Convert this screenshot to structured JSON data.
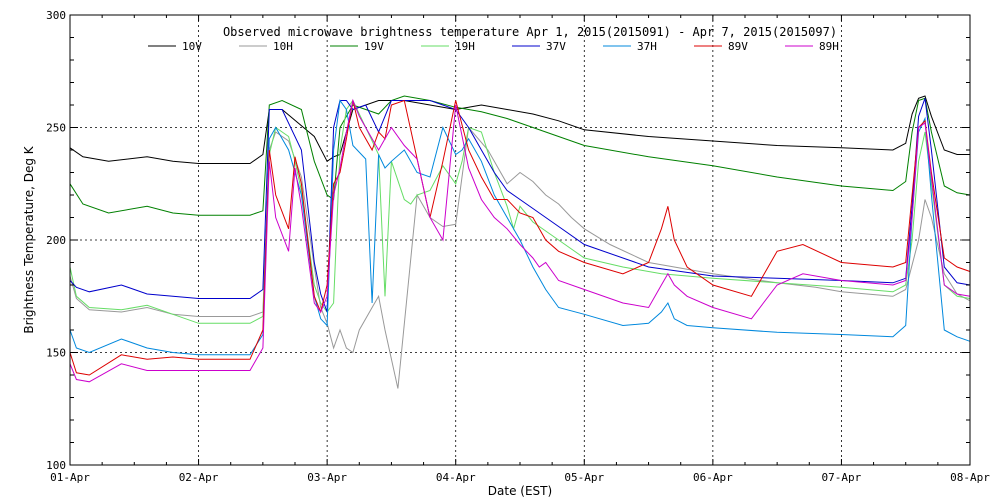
{
  "chart_data": {
    "type": "line",
    "title": "Observed microwave brightness temperature Apr  1, 2015(2015091) - Apr  7, 2015(2015097)",
    "xlabel": "Date (EST)",
    "ylabel": "Brightness Temperature, Deg K",
    "xlim": [
      0,
      7
    ],
    "ylim": [
      100,
      300
    ],
    "grid": true,
    "legend_position": "top",
    "x_ticks": [
      {
        "value": 0,
        "label": "01-Apr"
      },
      {
        "value": 1,
        "label": "02-Apr"
      },
      {
        "value": 2,
        "label": "03-Apr"
      },
      {
        "value": 3,
        "label": "04-Apr"
      },
      {
        "value": 4,
        "label": "05-Apr"
      },
      {
        "value": 5,
        "label": "06-Apr"
      },
      {
        "value": 6,
        "label": "07-Apr"
      },
      {
        "value": 7,
        "label": "08-Apr"
      }
    ],
    "y_ticks": [
      {
        "value": 100,
        "label": "100"
      },
      {
        "value": 150,
        "label": "150"
      },
      {
        "value": 200,
        "label": "200"
      },
      {
        "value": 250,
        "label": "250"
      },
      {
        "value": 300,
        "label": "300"
      }
    ],
    "series": [
      {
        "name": "10V",
        "color": "#000000",
        "x": [
          0,
          0.1,
          0.3,
          0.6,
          0.8,
          1.0,
          1.4,
          1.5,
          1.55,
          1.65,
          1.9,
          2.0,
          2.05,
          2.1,
          2.2,
          2.4,
          2.6,
          2.8,
          3.0,
          3.2,
          3.4,
          3.6,
          3.8,
          4.0,
          4.5,
          5.0,
          5.5,
          6.0,
          6.4,
          6.5,
          6.55,
          6.6,
          6.65,
          6.7,
          6.8,
          6.9,
          7.0
        ],
        "y": [
          241,
          237,
          235,
          237,
          235,
          234,
          234,
          238,
          258,
          258,
          246,
          235,
          237,
          238,
          258,
          262,
          262,
          260,
          258,
          260,
          258,
          256,
          253,
          249,
          246,
          244,
          242,
          241,
          240,
          243,
          256,
          263,
          264,
          255,
          240,
          238,
          238
        ]
      },
      {
        "name": "10H",
        "color": "#999999",
        "x": [
          0,
          0.05,
          0.15,
          0.4,
          0.6,
          0.8,
          1.0,
          1.4,
          1.5,
          1.55,
          1.6,
          1.7,
          1.8,
          1.9,
          1.95,
          2.0,
          2.05,
          2.1,
          2.15,
          2.2,
          2.25,
          2.35,
          2.4,
          2.45,
          2.55,
          2.7,
          2.8,
          2.9,
          3.0,
          3.1,
          3.25,
          3.4,
          3.5,
          3.6,
          3.7,
          3.8,
          3.9,
          4.0,
          4.2,
          4.5,
          5.0,
          5.5,
          5.8,
          6.0,
          6.4,
          6.5,
          6.6,
          6.65,
          6.7,
          6.8,
          6.9,
          7.0
        ],
        "y": [
          184,
          174,
          169,
          168,
          170,
          167,
          166,
          166,
          168,
          240,
          248,
          244,
          228,
          188,
          170,
          163,
          152,
          160,
          152,
          150,
          160,
          170,
          175,
          160,
          134,
          220,
          210,
          206,
          207,
          250,
          240,
          225,
          230,
          226,
          220,
          216,
          210,
          205,
          198,
          190,
          185,
          181,
          179,
          177,
          175,
          178,
          200,
          218,
          210,
          185,
          176,
          173
        ]
      },
      {
        "name": "19V",
        "color": "#008000",
        "x": [
          0,
          0.1,
          0.3,
          0.6,
          0.8,
          1.0,
          1.4,
          1.5,
          1.55,
          1.65,
          1.8,
          1.9,
          2.0,
          2.05,
          2.1,
          2.2,
          2.3,
          2.4,
          2.5,
          2.6,
          2.8,
          3.0,
          3.2,
          3.4,
          3.6,
          3.8,
          4.0,
          4.5,
          5.0,
          5.5,
          6.0,
          6.4,
          6.5,
          6.55,
          6.6,
          6.65,
          6.7,
          6.8,
          6.9,
          7.0
        ],
        "y": [
          225,
          216,
          212,
          215,
          212,
          211,
          211,
          213,
          260,
          262,
          258,
          235,
          220,
          218,
          250,
          260,
          258,
          256,
          262,
          264,
          262,
          259,
          257,
          254,
          250,
          246,
          242,
          237,
          233,
          228,
          224,
          222,
          226,
          248,
          262,
          263,
          248,
          224,
          221,
          220
        ]
      },
      {
        "name": "19H",
        "color": "#66dd66",
        "x": [
          0,
          0.05,
          0.15,
          0.4,
          0.6,
          0.8,
          1.0,
          1.4,
          1.5,
          1.55,
          1.6,
          1.7,
          1.75,
          1.8,
          1.9,
          1.95,
          2.0,
          2.05,
          2.1,
          2.15,
          2.2,
          2.3,
          2.4,
          2.45,
          2.5,
          2.6,
          2.65,
          2.7,
          2.8,
          2.9,
          3.0,
          3.05,
          3.1,
          3.2,
          3.3,
          3.4,
          3.45,
          3.5,
          3.6,
          3.7,
          3.8,
          3.9,
          4.0,
          4.3,
          4.6,
          5.0,
          5.5,
          6.0,
          6.4,
          6.5,
          6.55,
          6.6,
          6.65,
          6.7,
          6.8,
          6.9,
          7.0
        ],
        "y": [
          188,
          175,
          170,
          169,
          171,
          167,
          163,
          163,
          166,
          238,
          250,
          246,
          235,
          222,
          180,
          172,
          168,
          172,
          240,
          258,
          262,
          250,
          238,
          175,
          235,
          218,
          216,
          220,
          222,
          233,
          225,
          235,
          250,
          248,
          230,
          215,
          205,
          215,
          208,
          204,
          200,
          196,
          192,
          188,
          185,
          183,
          181,
          179,
          177,
          180,
          200,
          235,
          248,
          225,
          180,
          175,
          174
        ]
      },
      {
        "name": "37V",
        "color": "#0000cc",
        "x": [
          0,
          0.05,
          0.15,
          0.4,
          0.6,
          0.8,
          1.0,
          1.4,
          1.5,
          1.55,
          1.65,
          1.8,
          1.9,
          1.95,
          2.0,
          2.05,
          2.1,
          2.15,
          2.2,
          2.3,
          2.4,
          2.5,
          2.6,
          2.8,
          3.0,
          3.1,
          3.2,
          3.3,
          3.4,
          3.5,
          3.6,
          3.8,
          4.0,
          4.5,
          5.0,
          5.5,
          6.0,
          6.4,
          6.5,
          6.55,
          6.6,
          6.65,
          6.7,
          6.8,
          6.9,
          7.0
        ],
        "y": [
          182,
          179,
          177,
          180,
          176,
          175,
          174,
          174,
          178,
          258,
          258,
          240,
          190,
          176,
          168,
          250,
          262,
          262,
          258,
          260,
          248,
          262,
          262,
          262,
          258,
          250,
          240,
          230,
          222,
          218,
          214,
          206,
          198,
          188,
          184,
          183,
          182,
          181,
          183,
          215,
          255,
          263,
          240,
          188,
          181,
          180
        ]
      },
      {
        "name": "37H",
        "color": "#0088dd",
        "x": [
          0,
          0.05,
          0.15,
          0.4,
          0.6,
          0.8,
          1.0,
          1.4,
          1.5,
          1.55,
          1.6,
          1.7,
          1.8,
          1.9,
          1.95,
          2.0,
          2.05,
          2.1,
          2.15,
          2.2,
          2.3,
          2.35,
          2.4,
          2.45,
          2.5,
          2.6,
          2.7,
          2.8,
          2.9,
          3.0,
          3.05,
          3.1,
          3.2,
          3.3,
          3.4,
          3.5,
          3.6,
          3.7,
          3.8,
          4.0,
          4.3,
          4.5,
          4.6,
          4.65,
          4.7,
          4.8,
          5.0,
          5.5,
          6.0,
          6.4,
          6.5,
          6.55,
          6.6,
          6.65,
          6.7,
          6.8,
          6.9,
          7.0
        ],
        "y": [
          160,
          152,
          150,
          156,
          152,
          150,
          149,
          149,
          158,
          245,
          250,
          240,
          220,
          175,
          165,
          162,
          240,
          262,
          258,
          242,
          236,
          172,
          238,
          232,
          235,
          240,
          230,
          228,
          250,
          238,
          240,
          245,
          235,
          220,
          210,
          200,
          188,
          178,
          170,
          167,
          162,
          163,
          168,
          172,
          165,
          162,
          161,
          159,
          158,
          157,
          162,
          210,
          248,
          254,
          220,
          160,
          157,
          155
        ]
      },
      {
        "name": "89V",
        "color": "#dd0000",
        "x": [
          0,
          0.05,
          0.15,
          0.4,
          0.6,
          0.8,
          1.0,
          1.4,
          1.5,
          1.55,
          1.6,
          1.7,
          1.75,
          1.8,
          1.9,
          1.95,
          2.0,
          2.05,
          2.1,
          2.15,
          2.2,
          2.25,
          2.35,
          2.4,
          2.45,
          2.5,
          2.6,
          2.8,
          2.9,
          3.0,
          3.1,
          3.2,
          3.3,
          3.4,
          3.5,
          3.6,
          3.65,
          3.7,
          3.8,
          4.0,
          4.3,
          4.5,
          4.6,
          4.65,
          4.7,
          4.8,
          5.0,
          5.3,
          5.5,
          5.7,
          6.0,
          6.4,
          6.5,
          6.55,
          6.6,
          6.65,
          6.7,
          6.8,
          6.9,
          7.0
        ],
        "y": [
          150,
          141,
          140,
          149,
          147,
          148,
          147,
          147,
          160,
          240,
          220,
          205,
          237,
          225,
          175,
          168,
          180,
          225,
          230,
          245,
          262,
          250,
          240,
          248,
          245,
          260,
          262,
          210,
          235,
          262,
          240,
          228,
          218,
          218,
          212,
          210,
          205,
          200,
          195,
          190,
          185,
          190,
          205,
          215,
          200,
          188,
          180,
          175,
          195,
          198,
          190,
          188,
          190,
          220,
          250,
          253,
          230,
          192,
          188,
          186
        ]
      },
      {
        "name": "89H",
        "color": "#cc00cc",
        "x": [
          0,
          0.05,
          0.15,
          0.4,
          0.6,
          0.8,
          1.0,
          1.4,
          1.5,
          1.55,
          1.6,
          1.7,
          1.75,
          1.8,
          1.9,
          1.95,
          2.0,
          2.05,
          2.1,
          2.15,
          2.2,
          2.25,
          2.35,
          2.4,
          2.5,
          2.6,
          2.7,
          2.8,
          2.9,
          3.0,
          3.1,
          3.2,
          3.3,
          3.4,
          3.5,
          3.6,
          3.65,
          3.7,
          3.8,
          4.0,
          4.3,
          4.5,
          4.6,
          4.65,
          4.7,
          4.8,
          5.0,
          5.3,
          5.5,
          5.7,
          6.0,
          6.4,
          6.5,
          6.55,
          6.6,
          6.65,
          6.7,
          6.8,
          6.9,
          7.0
        ],
        "y": [
          145,
          138,
          137,
          145,
          142,
          142,
          142,
          142,
          152,
          235,
          210,
          195,
          232,
          215,
          172,
          168,
          175,
          220,
          232,
          248,
          262,
          255,
          245,
          240,
          250,
          242,
          236,
          210,
          200,
          260,
          232,
          218,
          210,
          205,
          198,
          192,
          188,
          190,
          182,
          178,
          172,
          170,
          180,
          185,
          180,
          175,
          170,
          165,
          180,
          185,
          182,
          180,
          182,
          210,
          250,
          252,
          228,
          180,
          176,
          175
        ]
      }
    ]
  }
}
